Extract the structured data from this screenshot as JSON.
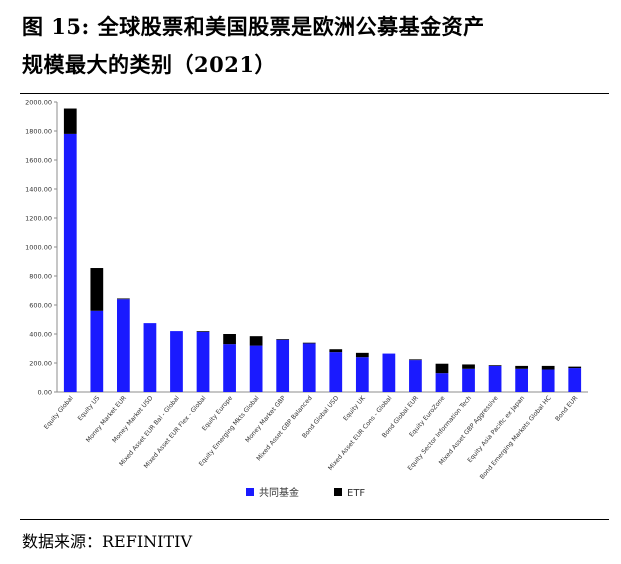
{
  "title_line1": "图 15: 全球股票和美国股票是欧洲公募基金资产",
  "title_line2": "规模最大的类别（2021）",
  "source": "数据来源：REFINITIV",
  "chart_data": {
    "type": "bar",
    "stacked": true,
    "categories": [
      "Equity Global",
      "Equity US",
      "Money Market EUR",
      "Money Market USD",
      "Mixed Asset EUR Bal - Global",
      "Mixed Asset EUR Flex - Global",
      "Equity Europe",
      "Equity Emerging Mkts Global",
      "Money Market GBP",
      "Mixed Asset GBP Balanced",
      "Bond Global USD",
      "Equity UK",
      "Mixed Asset EUR Cons - Global",
      "Bond Global EUR",
      "Equity EuroZone",
      "Equity Sector Information Tech",
      "Mixed Asset GBP Aggressive",
      "Equity Asia Pacific ex Japan",
      "Bond Emerging Markets Global HC",
      "Bond EUR"
    ],
    "series": [
      {
        "name": "共同基金",
        "color": "#1a1aff",
        "values": [
          1780,
          560,
          640,
          475,
          420,
          415,
          330,
          320,
          360,
          335,
          275,
          240,
          265,
          220,
          130,
          160,
          180,
          160,
          155,
          165
        ]
      },
      {
        "name": "ETF",
        "color": "#000000",
        "values": [
          175,
          295,
          5,
          0,
          0,
          5,
          70,
          65,
          5,
          5,
          20,
          30,
          0,
          5,
          65,
          30,
          5,
          20,
          25,
          10
        ]
      }
    ],
    "yticks": [
      "0.00",
      "200.00",
      "400.00",
      "600.00",
      "800.00",
      "1000.00",
      "1200.00",
      "1400.00",
      "1600.00",
      "1800.00",
      "2000.00"
    ],
    "ylim": [
      0,
      2000
    ],
    "legend_position": "bottom",
    "grid": false
  }
}
